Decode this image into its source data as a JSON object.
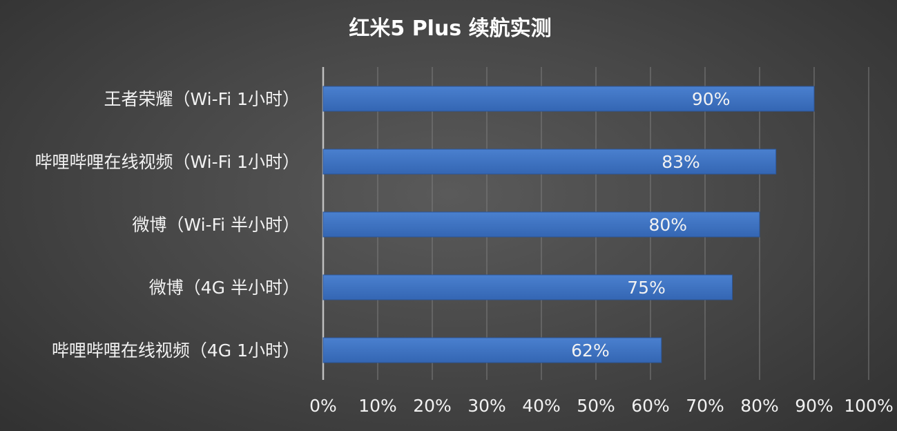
{
  "chart_data": {
    "type": "bar",
    "orientation": "horizontal",
    "title": "红米5 Plus 续航实测",
    "categories": [
      "王者荣耀（Wi-Fi 1小时）",
      "哔哩哔哩在线视频（Wi-Fi 1小时）",
      "微博（Wi-Fi 半小时）",
      "微博（4G 半小时）",
      "哔哩哔哩在线视频（4G 1小时）"
    ],
    "values": [
      90,
      83,
      80,
      75,
      62
    ],
    "data_labels": [
      "90%",
      "83%",
      "80%",
      "75%",
      "62%"
    ],
    "x_ticks": [
      "0%",
      "10%",
      "20%",
      "30%",
      "40%",
      "50%",
      "60%",
      "70%",
      "80%",
      "90%",
      "100%"
    ],
    "xlim": [
      0,
      100
    ],
    "xlabel": "",
    "ylabel": "",
    "grid": true,
    "legend": "none",
    "colors": {
      "bar": "#3d72c2",
      "bar_edge": "#2c5597",
      "grid": "#7d7d7d",
      "axis": "#bfbfbf",
      "text": "#f2f2f2",
      "title": "#ffffff"
    }
  }
}
